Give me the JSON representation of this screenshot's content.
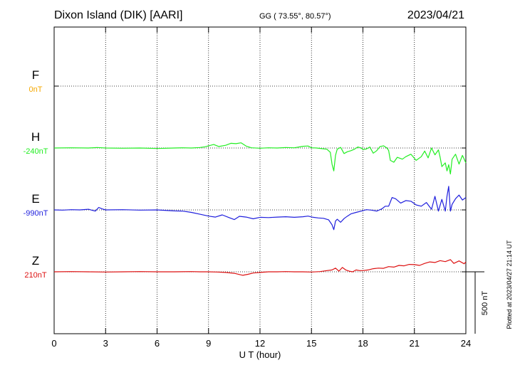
{
  "header": {
    "station": "Dixon Island (DIK)  [AARI]",
    "coords": "GG ( 73.55°,  80.57°)",
    "date": "2023/04/21"
  },
  "side_note": "Plotted at 2023/04/27 21:14 UT",
  "scale_label": "500 nT",
  "chart_data": {
    "type": "line",
    "xlabel": "U T (hour)",
    "xlim": [
      0,
      24
    ],
    "xticks": [
      "0",
      "3",
      "6",
      "9",
      "12",
      "15",
      "18",
      "21",
      "24"
    ],
    "scale_nT": 500,
    "series": [
      {
        "name": "F",
        "offset_label": "0nT",
        "color": "#f5a800",
        "x": [],
        "y": []
      },
      {
        "name": "H",
        "offset_label": "-240nT",
        "color": "#22ee22",
        "x": [
          0,
          1,
          2,
          2.5,
          3,
          4,
          5,
          6,
          7,
          7.5,
          8,
          8.5,
          8.8,
          9,
          9.3,
          9.6,
          10,
          10.3,
          10.6,
          10.9,
          11.2,
          11.5,
          12,
          12.5,
          13,
          13.5,
          14,
          14.5,
          14.8,
          15,
          15.3,
          15.6,
          15.9,
          16.1,
          16.2,
          16.3,
          16.4,
          16.5,
          16.7,
          16.9,
          17.1,
          17.3,
          17.5,
          17.7,
          17.9,
          18,
          18.2,
          18.4,
          18.6,
          18.8,
          19,
          19.2,
          19.4,
          19.5,
          19.6,
          19.8,
          20,
          20.3,
          20.5,
          20.8,
          21.1,
          21.4,
          21.6,
          21.8,
          22,
          22.2,
          22.4,
          22.5,
          22.6,
          22.8,
          22.9,
          23,
          23.1,
          23.2,
          23.4,
          23.6,
          23.8,
          24
        ],
        "y": [
          -240,
          -238,
          -240,
          -236,
          -240,
          -242,
          -240,
          -244,
          -240,
          -238,
          -240,
          -236,
          -230,
          -222,
          -212,
          -228,
          -218,
          -202,
          -205,
          -198,
          -225,
          -238,
          -242,
          -238,
          -240,
          -236,
          -238,
          -226,
          -224,
          -238,
          -240,
          -245,
          -250,
          -275,
          -370,
          -425,
          -300,
          -250,
          -235,
          -285,
          -270,
          -262,
          -250,
          -232,
          -240,
          -252,
          -248,
          -232,
          -282,
          -262,
          -228,
          -222,
          -240,
          -260,
          -340,
          -355,
          -315,
          -330,
          -310,
          -290,
          -340,
          -310,
          -265,
          -320,
          -240,
          -295,
          -255,
          -315,
          -390,
          -360,
          -425,
          -375,
          -450,
          -330,
          -290,
          -370,
          -300,
          -360
        ]
      },
      {
        "name": "E",
        "offset_label": "-990nT",
        "color": "#1f1fdd",
        "x": [
          0,
          0.5,
          1,
          1.5,
          2,
          2.4,
          2.6,
          2.8,
          3,
          4,
          5,
          6,
          7,
          7.5,
          8,
          8.5,
          9,
          9.4,
          9.8,
          10.2,
          10.5,
          10.8,
          11.2,
          11.6,
          12,
          12.5,
          13,
          13.5,
          14,
          14.5,
          14.8,
          15.1,
          15.4,
          15.7,
          16,
          16.2,
          16.3,
          16.4,
          16.5,
          16.7,
          16.9,
          17.1,
          17.3,
          17.6,
          17.9,
          18.2,
          18.5,
          18.8,
          19.1,
          19.3,
          19.5,
          19.7,
          19.9,
          20.2,
          20.5,
          20.8,
          21.1,
          21.4,
          21.7,
          22,
          22.2,
          22.4,
          22.6,
          22.8,
          22.9,
          23,
          23.1,
          23.2,
          23.4,
          23.6,
          23.8,
          24
        ],
        "y": [
          -990,
          -992,
          -988,
          -990,
          -985,
          -1000,
          -970,
          -982,
          -990,
          -988,
          -992,
          -990,
          -998,
          -1000,
          -1010,
          -1025,
          -1040,
          -1048,
          -1030,
          -1052,
          -1068,
          -1042,
          -1048,
          -1062,
          -1050,
          -1052,
          -1048,
          -1045,
          -1050,
          -1045,
          -1040,
          -1050,
          -1055,
          -1058,
          -1070,
          -1110,
          -1150,
          -1080,
          -1065,
          -1090,
          -1060,
          -1040,
          -1022,
          -1010,
          -1000,
          -988,
          -992,
          -1000,
          -982,
          -960,
          -960,
          -890,
          -900,
          -935,
          -915,
          -920,
          -950,
          -960,
          -930,
          -985,
          -880,
          -1000,
          -905,
          -1000,
          -880,
          -800,
          -1000,
          -945,
          -900,
          -870,
          -910,
          -890
        ]
      },
      {
        "name": "Z",
        "offset_label": "210nT",
        "color": "#dd1111",
        "x": [
          0,
          1,
          2,
          3,
          4,
          5,
          6,
          7,
          8,
          8.5,
          9,
          9.5,
          10,
          10.5,
          10.8,
          11,
          11.3,
          11.6,
          12,
          12.5,
          13,
          13.5,
          14,
          14.5,
          15,
          15.5,
          15.9,
          16.2,
          16.4,
          16.6,
          16.8,
          17,
          17.2,
          17.4,
          17.6,
          17.8,
          18,
          18.3,
          18.6,
          18.9,
          19.2,
          19.5,
          19.8,
          20.1,
          20.4,
          20.7,
          21,
          21.3,
          21.6,
          21.9,
          22.2,
          22.5,
          22.8,
          23.1,
          23.3,
          23.6,
          23.9,
          24
        ],
        "y": [
          210,
          212,
          210,
          208,
          210,
          212,
          210,
          210,
          212,
          210,
          210,
          208,
          205,
          198,
          188,
          182,
          190,
          200,
          205,
          210,
          210,
          212,
          210,
          210,
          208,
          212,
          220,
          225,
          240,
          215,
          245,
          225,
          215,
          210,
          225,
          220,
          220,
          225,
          235,
          240,
          238,
          252,
          248,
          262,
          258,
          270,
          268,
          262,
          278,
          290,
          285,
          300,
          292,
          308,
          278,
          298,
          275,
          290
        ]
      }
    ]
  }
}
